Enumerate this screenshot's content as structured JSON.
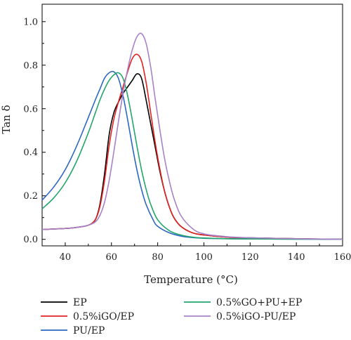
{
  "chart_data": {
    "type": "line",
    "title": "",
    "xlabel": "Temperature (°C)",
    "ylabel": "Tan δ",
    "xlim": [
      30,
      160
    ],
    "ylim": [
      -0.03,
      1.08
    ],
    "xticks": [
      40,
      60,
      80,
      100,
      120,
      140,
      160
    ],
    "yticks": [
      0.0,
      0.2,
      0.4,
      0.6,
      0.8,
      1.0
    ],
    "xtick_labels": [
      "40",
      "60",
      "80",
      "100",
      "120",
      "140",
      "160"
    ],
    "ytick_labels": [
      "0.0",
      "0.2",
      "0.4",
      "0.6",
      "0.8",
      "1.0"
    ],
    "grid": false,
    "legend_position": "bottom",
    "series": [
      {
        "name": "EP",
        "color": "#000000",
        "x": [
          30,
          40,
          45,
          50,
          53,
          55,
          57,
          59,
          61,
          63,
          65,
          67,
          69,
          71,
          73,
          75,
          77,
          79,
          81,
          83,
          85,
          87,
          90,
          95,
          100,
          110,
          120,
          140,
          160
        ],
        "y": [
          0.045,
          0.05,
          0.055,
          0.065,
          0.09,
          0.16,
          0.3,
          0.48,
          0.58,
          0.63,
          0.67,
          0.7,
          0.73,
          0.76,
          0.74,
          0.64,
          0.53,
          0.42,
          0.31,
          0.22,
          0.15,
          0.1,
          0.06,
          0.03,
          0.02,
          0.01,
          0.007,
          0.003,
          0.0
        ]
      },
      {
        "name": "0.5%iGO/EP",
        "color": "#e32222",
        "x": [
          30,
          40,
          45,
          50,
          53,
          55,
          57,
          59,
          61,
          63,
          65,
          67,
          69,
          71,
          73,
          75,
          77,
          79,
          81,
          83,
          85,
          87,
          90,
          95,
          100,
          110,
          120,
          140,
          160
        ],
        "y": [
          0.045,
          0.05,
          0.055,
          0.065,
          0.09,
          0.15,
          0.27,
          0.43,
          0.55,
          0.63,
          0.7,
          0.77,
          0.83,
          0.85,
          0.82,
          0.72,
          0.58,
          0.44,
          0.32,
          0.22,
          0.15,
          0.1,
          0.06,
          0.03,
          0.02,
          0.01,
          0.006,
          0.003,
          0.0
        ]
      },
      {
        "name": "PU/EP",
        "color": "#2c67c4",
        "x": [
          30,
          35,
          40,
          45,
          50,
          53,
          55,
          57,
          59,
          61,
          63,
          65,
          67,
          69,
          71,
          73,
          75,
          78,
          80,
          85,
          90,
          95,
          100,
          110,
          120,
          140,
          160
        ],
        "y": [
          0.18,
          0.24,
          0.32,
          0.43,
          0.56,
          0.64,
          0.69,
          0.74,
          0.765,
          0.77,
          0.74,
          0.66,
          0.55,
          0.43,
          0.32,
          0.23,
          0.16,
          0.09,
          0.06,
          0.03,
          0.015,
          0.008,
          0.005,
          0.003,
          0.002,
          0.001,
          0.0
        ]
      },
      {
        "name": "0.5%GO+PU+EP",
        "color": "#22a66b",
        "x": [
          30,
          35,
          40,
          45,
          50,
          53,
          55,
          57,
          59,
          61,
          63,
          65,
          67,
          69,
          71,
          73,
          75,
          77,
          80,
          85,
          90,
          95,
          100,
          110,
          120,
          140,
          160
        ],
        "y": [
          0.14,
          0.19,
          0.26,
          0.36,
          0.49,
          0.58,
          0.64,
          0.69,
          0.73,
          0.755,
          0.765,
          0.74,
          0.66,
          0.55,
          0.43,
          0.32,
          0.23,
          0.16,
          0.09,
          0.04,
          0.02,
          0.01,
          0.006,
          0.003,
          0.002,
          0.001,
          0.0
        ]
      },
      {
        "name": "0.5%iGO-PU/EP",
        "color": "#a882c8",
        "x": [
          30,
          40,
          45,
          50,
          53,
          55,
          57,
          59,
          61,
          63,
          65,
          67,
          69,
          71,
          73,
          75,
          77,
          79,
          81,
          83,
          85,
          87,
          90,
          95,
          100,
          110,
          120,
          140,
          160
        ],
        "y": [
          0.045,
          0.05,
          0.055,
          0.065,
          0.08,
          0.11,
          0.17,
          0.27,
          0.4,
          0.54,
          0.67,
          0.78,
          0.87,
          0.93,
          0.945,
          0.9,
          0.79,
          0.64,
          0.5,
          0.37,
          0.27,
          0.19,
          0.11,
          0.05,
          0.025,
          0.012,
          0.007,
          0.003,
          0.0
        ]
      }
    ]
  }
}
